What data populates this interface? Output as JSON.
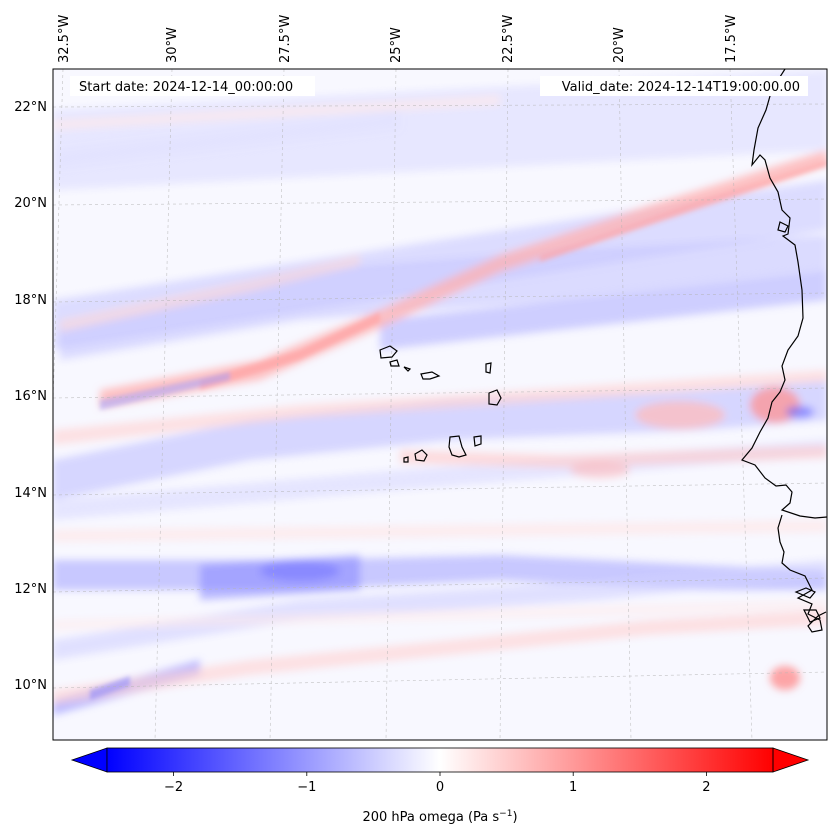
{
  "map": {
    "start_label": "Start date: 2024-12-14_00:00:00",
    "valid_label": "Valid_date: 2024-12-14T19:00:00.00",
    "lon_ticks": [
      "32.5°W",
      "30°W",
      "27.5°W",
      "25°W",
      "22.5°W",
      "20°W",
      "17.5°W"
    ],
    "lat_ticks": [
      "22°N",
      "20°N",
      "18°N",
      "16°N",
      "14°N",
      "12°N",
      "10°N"
    ],
    "extent": {
      "lon_min": -33.0,
      "lon_max": -15.5,
      "lat_min": 8.9,
      "lat_max": 22.8
    },
    "variable": "200 hPa omega",
    "colormap": "bwr"
  },
  "colorbar": {
    "label_prefix": "200 hPa omega (Pa s",
    "label_sup": "−1",
    "label_suffix": ")",
    "ticks": [
      "−2",
      "−1",
      "0",
      "1",
      "2"
    ],
    "tick_values": [
      -2,
      -1,
      0,
      1,
      2
    ],
    "vmin": -2.5,
    "vmax": 2.5,
    "colors": {
      "low": "#0000ff",
      "mid": "#ffffff",
      "high": "#ff0000"
    }
  }
}
